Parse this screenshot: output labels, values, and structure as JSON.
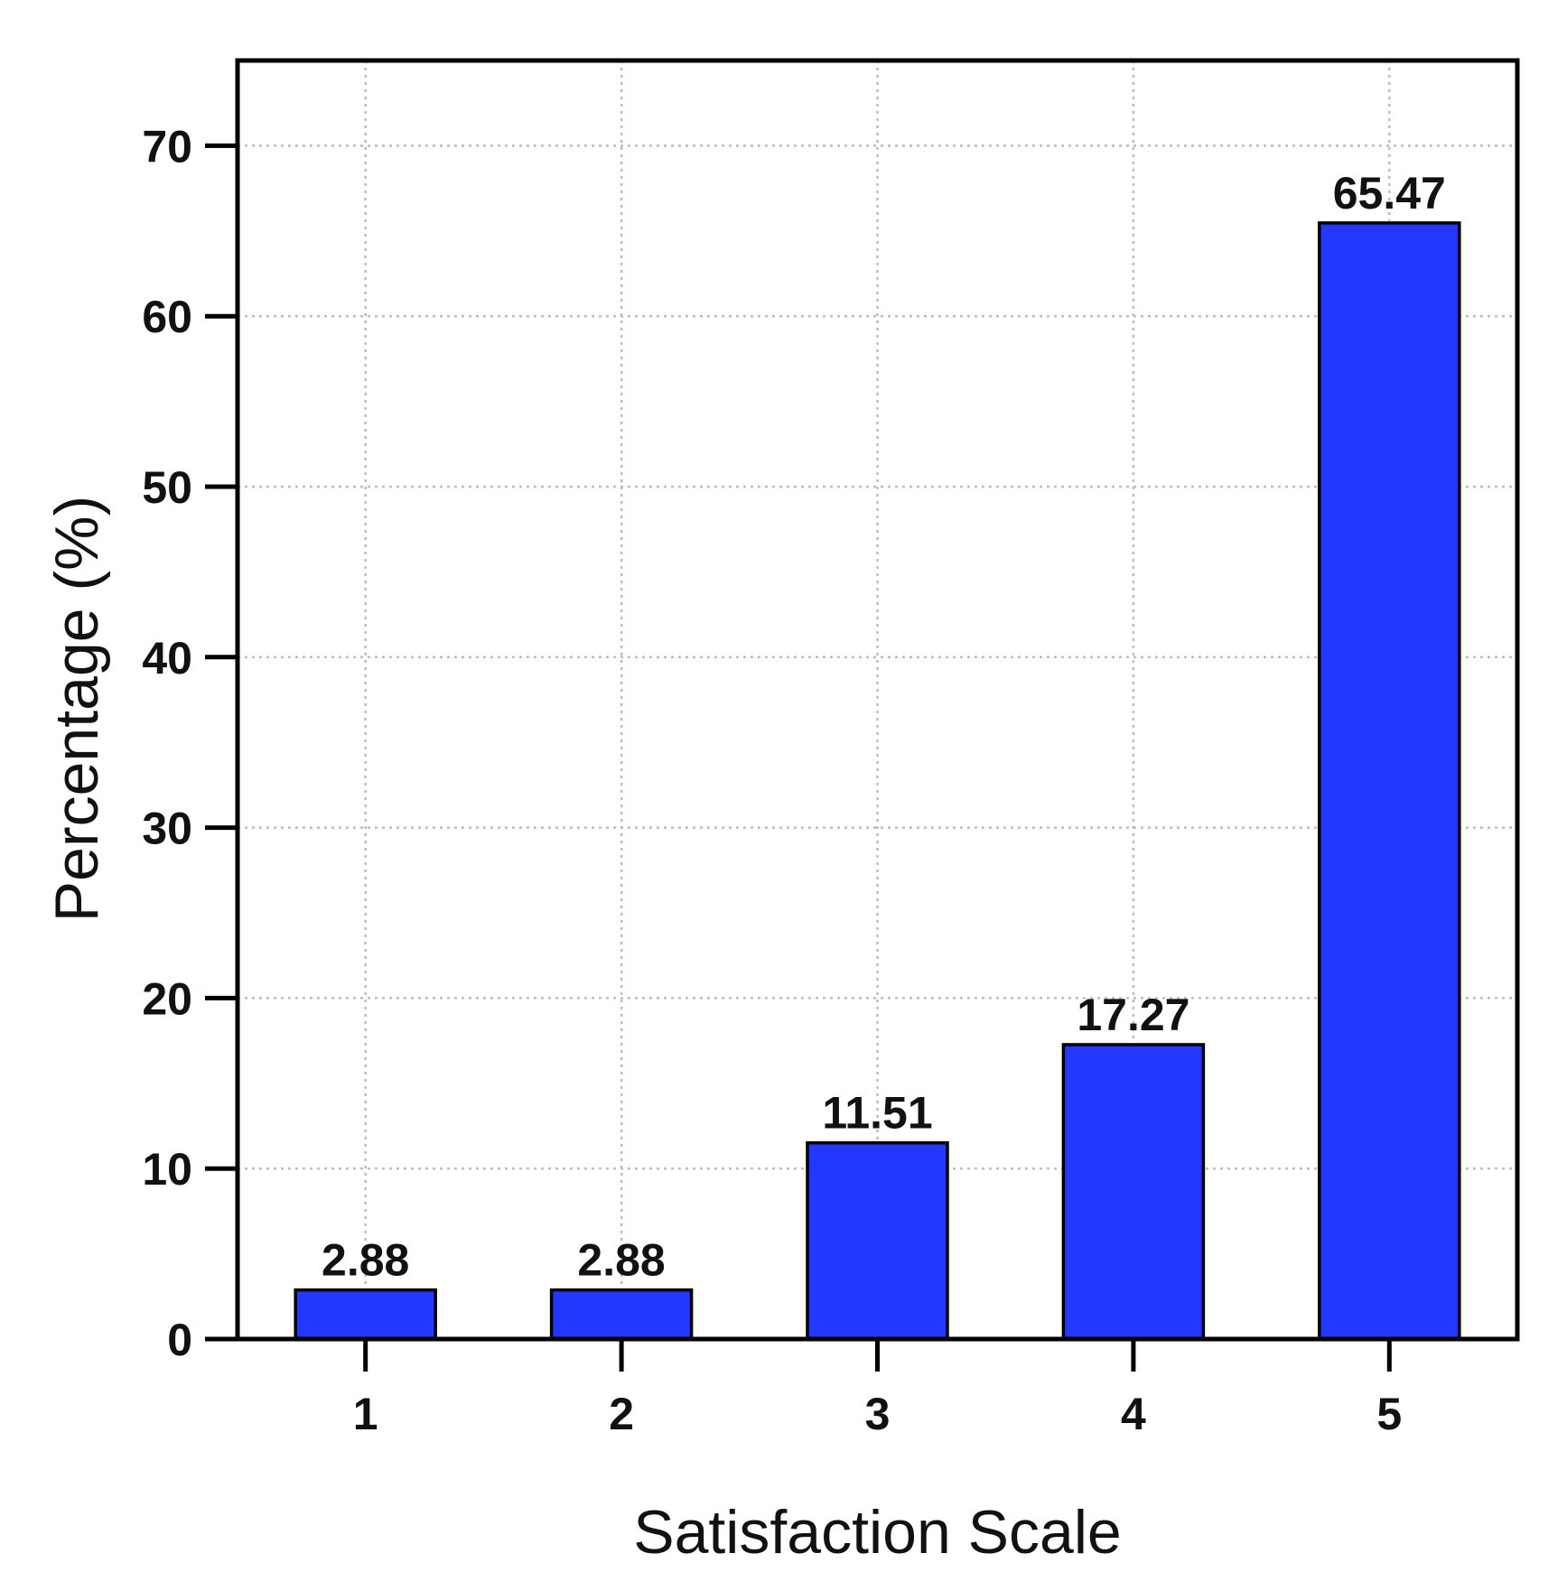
{
  "chart_data": {
    "type": "bar",
    "title": "",
    "xlabel": "Satisfaction Scale",
    "ylabel": "Percentage (%)",
    "categories": [
      "1",
      "2",
      "3",
      "4",
      "5"
    ],
    "values": [
      2.88,
      2.88,
      11.51,
      17.27,
      65.47
    ],
    "value_labels": [
      "2.88",
      "2.88",
      "11.51",
      "17.27",
      "65.47"
    ],
    "ylim": [
      0,
      75
    ],
    "yticks": [
      0,
      10,
      20,
      30,
      40,
      50,
      60,
      70
    ],
    "ytick_labels": [
      "0",
      "10",
      "20",
      "30",
      "40",
      "50",
      "60",
      "70"
    ],
    "grid": true,
    "legend": "none",
    "bar_color": "#2337ff"
  }
}
